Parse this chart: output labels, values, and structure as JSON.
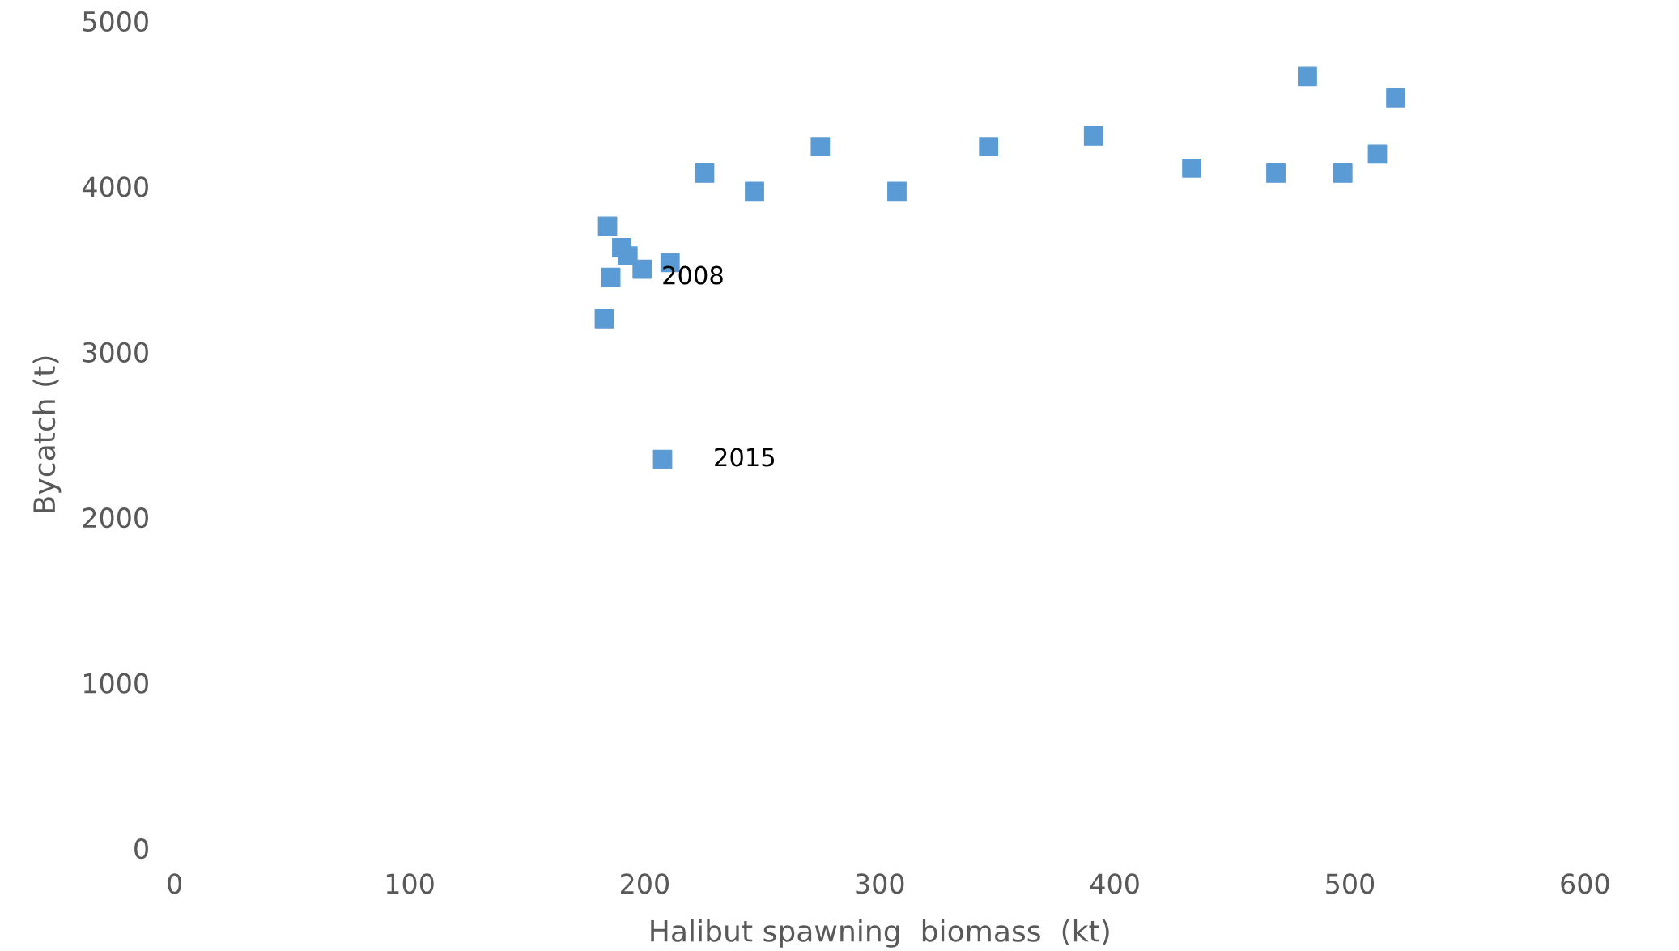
{
  "chart_data": {
    "type": "scatter",
    "xlabel": "Halibut spawning  biomass  (kt)",
    "ylabel": "Bycatch (t)",
    "x": [
      184.2,
      190.2,
      192.9,
      185.6,
      198.9,
      210.8,
      182.8,
      207.6,
      225.5,
      246.7,
      274.7,
      307.3,
      346.3,
      390.9,
      432.7,
      468.5,
      481.9,
      497.0,
      511.7,
      519.5
    ],
    "values": [
      3760,
      3630,
      3580,
      3450,
      3500,
      3540,
      3200,
      2350,
      4080,
      3970,
      4240,
      3970,
      4240,
      4305,
      4110,
      4080,
      4665,
      4080,
      4195,
      4535
    ],
    "color": "#5b9bd5",
    "marker": "square",
    "xlim": [
      0,
      600
    ],
    "xticks": [
      0,
      100,
      200,
      300,
      400,
      500,
      600
    ],
    "ylim": [
      0,
      5000
    ],
    "yticks": [
      0,
      1000,
      2000,
      3000,
      4000,
      5000
    ],
    "grid": false,
    "legend": false,
    "annotations": [
      {
        "text": "2008",
        "x": 185.6,
        "y": 3450
      },
      {
        "text": "2015",
        "x": 207.6,
        "y": 2350
      }
    ]
  }
}
